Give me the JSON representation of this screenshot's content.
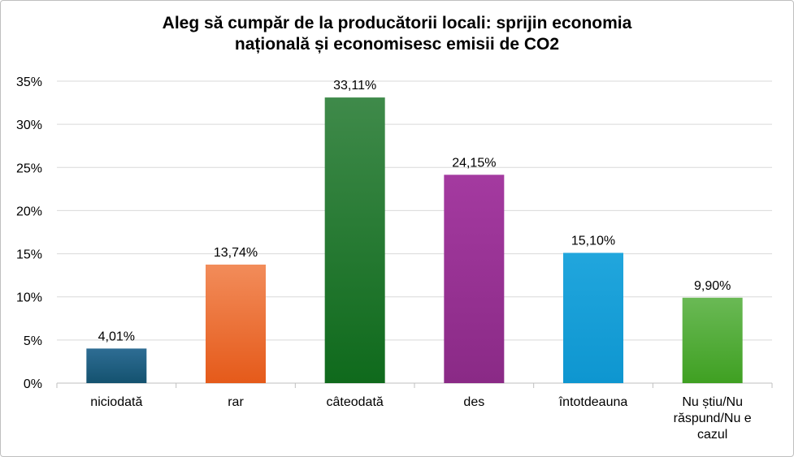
{
  "chart_data": {
    "type": "bar",
    "title_lines": [
      "Aleg să cumpăr de la producătorii locali: sprijin economia",
      "națională și economisesc emisii de CO2"
    ],
    "categories": [
      [
        "niciodată"
      ],
      [
        "rar"
      ],
      [
        "câteodată"
      ],
      [
        "des"
      ],
      [
        "întotdeauna"
      ],
      [
        "Nu știu/Nu",
        "răspund/Nu e",
        "cazul"
      ]
    ],
    "values": [
      4.01,
      13.74,
      33.11,
      24.15,
      15.1,
      9.9
    ],
    "data_labels": [
      "4,01%",
      "13,74%",
      "33,11%",
      "24,15%",
      "15,10%",
      "9,90%"
    ],
    "yticks": [
      {
        "value": 0,
        "label": "0%"
      },
      {
        "value": 5,
        "label": "5%"
      },
      {
        "value": 10,
        "label": "10%"
      },
      {
        "value": 15,
        "label": "15%"
      },
      {
        "value": 20,
        "label": "20%"
      },
      {
        "value": 25,
        "label": "25%"
      },
      {
        "value": 30,
        "label": "30%"
      },
      {
        "value": 35,
        "label": "35%"
      }
    ],
    "ylim": [
      0,
      35
    ],
    "grid": true,
    "legend": "none",
    "bar_colors": [
      [
        "#2e6d94",
        "#14526f"
      ],
      [
        "#f28c5a",
        "#e55a1a"
      ],
      [
        "#3f8a4a",
        "#0f6a1c"
      ],
      [
        "#a43aa0",
        "#8a2a86"
      ],
      [
        "#21a6dd",
        "#0e96d0"
      ],
      [
        "#6ab955",
        "#3fa022"
      ]
    ]
  }
}
